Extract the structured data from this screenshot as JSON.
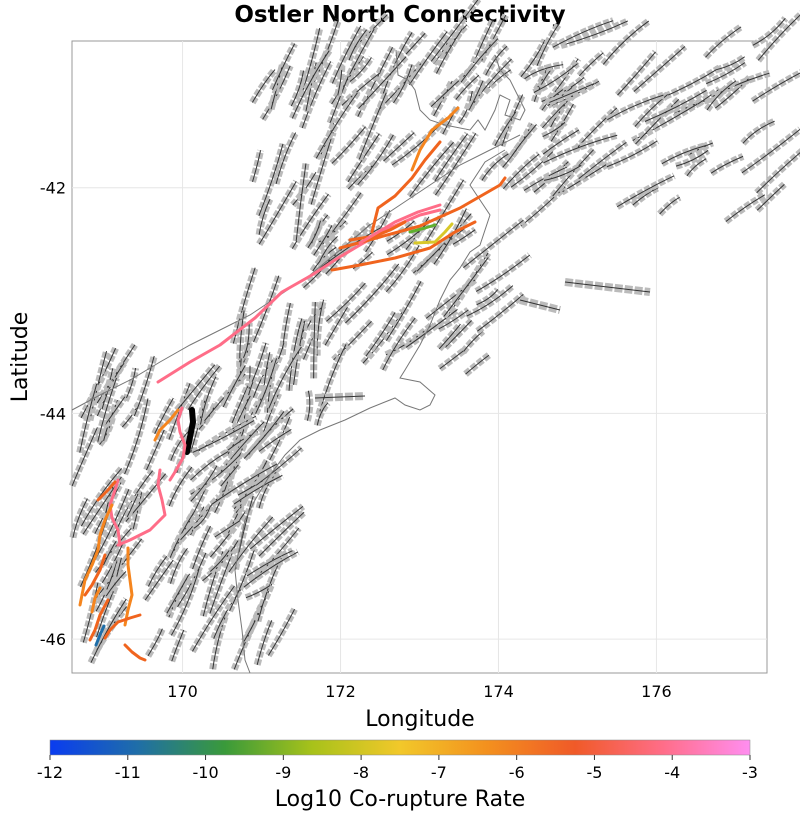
{
  "title": "Ostler North Connectivity",
  "axes": {
    "xlabel": "Longitude",
    "ylabel": "Latitude",
    "xlim": [
      168.6,
      177.4
    ],
    "ylim": [
      -46.3,
      -40.7
    ],
    "xticks": [
      "170",
      "172",
      "174",
      "176"
    ],
    "xtick_values": [
      170,
      172,
      174,
      176
    ],
    "yticks": [
      "-42",
      "-44",
      "-46"
    ],
    "ytick_values": [
      -42,
      -44,
      -46
    ]
  },
  "colorbar": {
    "label": "Log10 Co-rupture Rate",
    "ticks": [
      "-12",
      "-11",
      "-10",
      "-9",
      "-8",
      "-7",
      "-6",
      "-5",
      "-4",
      "-3"
    ],
    "range": [
      -12,
      -3
    ],
    "gradient": [
      "#0a3cf0",
      "#1f6ea8",
      "#3a9a3a",
      "#a8c21a",
      "#f2c82a",
      "#f3901e",
      "#f05a28",
      "#ff6d88",
      "#ff8ef0"
    ]
  },
  "colors": {
    "source_fault": "#000000",
    "pink": "#ff6d88",
    "orange": "#f0641e",
    "orange_light": "#f5851e",
    "green": "#5fb030",
    "yellow": "#d8c82a",
    "blue": "#1f6ea8",
    "fault_trace": "#333333",
    "fault_outline": "#aaaaaa",
    "coast": "#777777"
  }
}
